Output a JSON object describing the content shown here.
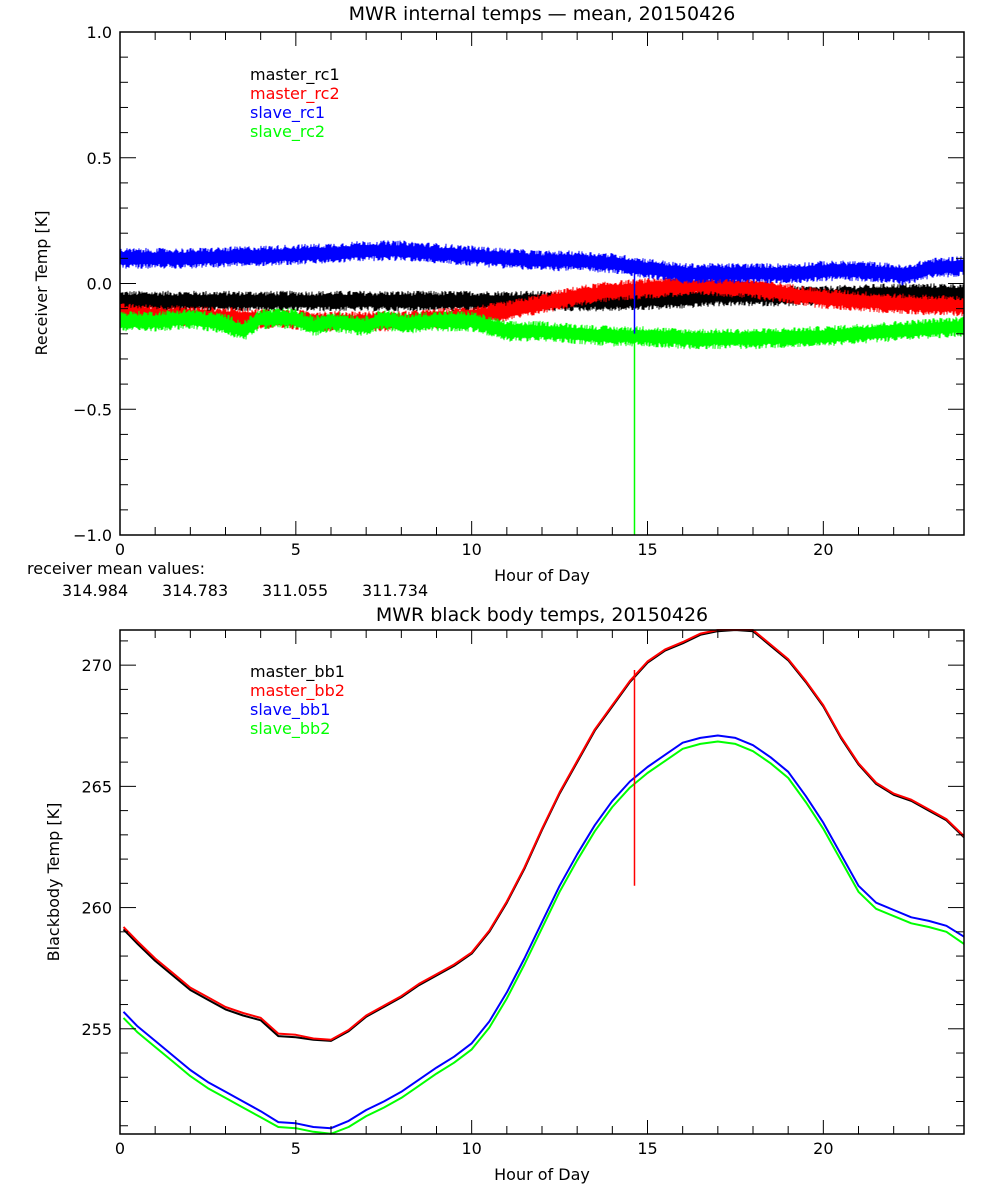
{
  "chart_data": [
    {
      "type": "line",
      "title": "MWR internal temps — mean, 20150426",
      "xlabel": "Hour of Day",
      "ylabel": "Receiver Temp [K]",
      "xlim": [
        0,
        24
      ],
      "ylim": [
        -1.0,
        1.0
      ],
      "xticks": [
        0,
        5,
        10,
        15,
        20
      ],
      "xtick_labels": [
        "0",
        "5",
        "10",
        "15",
        "20"
      ],
      "yticks": [
        -1.0,
        -0.5,
        0.0,
        0.5,
        1.0
      ],
      "ytick_labels": [
        "−1.0",
        "−0.5",
        "0.0",
        "0.5",
        "1.0"
      ],
      "grid": false,
      "legend_position": "top-left",
      "noisy": true,
      "series": [
        {
          "name": "master_rc1",
          "color": "#000000",
          "x": [
            0,
            2,
            4,
            6,
            8,
            10,
            12,
            14,
            16,
            17,
            18,
            19,
            20,
            22,
            24
          ],
          "y": [
            -0.07,
            -0.07,
            -0.07,
            -0.07,
            -0.07,
            -0.07,
            -0.07,
            -0.07,
            -0.06,
            -0.05,
            -0.05,
            -0.05,
            -0.05,
            -0.04,
            -0.04
          ]
        },
        {
          "name": "master_rc2",
          "color": "#ff0000",
          "x": [
            0,
            2,
            4,
            6,
            8,
            10,
            11,
            12,
            13,
            14,
            15,
            16,
            17,
            18,
            19,
            20,
            22,
            24
          ],
          "y": [
            -0.12,
            -0.13,
            -0.14,
            -0.15,
            -0.15,
            -0.13,
            -0.11,
            -0.08,
            -0.05,
            -0.03,
            -0.02,
            -0.01,
            -0.01,
            -0.02,
            -0.04,
            -0.06,
            -0.08,
            -0.09
          ]
        },
        {
          "name": "slave_rc1",
          "color": "#0000ff",
          "x": [
            0,
            2,
            4,
            6,
            7,
            8,
            9,
            10,
            11,
            12,
            13,
            14,
            15,
            16,
            17,
            18,
            19,
            20,
            21,
            22,
            22.3,
            23,
            24
          ],
          "y": [
            0.1,
            0.1,
            0.11,
            0.12,
            0.13,
            0.13,
            0.12,
            0.11,
            0.1,
            0.09,
            0.09,
            0.08,
            0.06,
            0.04,
            0.04,
            0.04,
            0.04,
            0.05,
            0.05,
            0.04,
            0.03,
            0.06,
            0.07
          ]
        },
        {
          "name": "slave_rc2",
          "color": "#00ff00",
          "x": [
            0,
            1,
            2,
            3,
            3.5,
            4,
            5,
            5.5,
            6,
            7,
            7.5,
            8,
            9,
            10,
            11,
            12,
            13,
            14,
            15,
            16,
            18,
            20,
            22,
            24
          ],
          "y": [
            -0.15,
            -0.15,
            -0.14,
            -0.16,
            -0.19,
            -0.14,
            -0.14,
            -0.17,
            -0.15,
            -0.17,
            -0.14,
            -0.16,
            -0.15,
            -0.15,
            -0.19,
            -0.19,
            -0.2,
            -0.21,
            -0.21,
            -0.22,
            -0.22,
            -0.21,
            -0.19,
            -0.17
          ]
        }
      ],
      "spikes": [
        {
          "series": "slave_rc1",
          "x": 14.63,
          "y_from": 0.07,
          "y_to": -0.2,
          "color": "#0000ff"
        },
        {
          "series": "slave_rc2",
          "x": 14.63,
          "y_from": -0.2,
          "y_to": -1.0,
          "color": "#00ff00"
        }
      ],
      "annotation": {
        "label": "receiver mean values:",
        "values": [
          {
            "text": "314.984",
            "color": "#000000"
          },
          {
            "text": "314.783",
            "color": "#ff0000"
          },
          {
            "text": "311.055",
            "color": "#0000ff"
          },
          {
            "text": "311.734",
            "color": "#00ff00"
          }
        ]
      }
    },
    {
      "type": "line",
      "title": "MWR black body temps, 20150426",
      "xlabel": "Hour of Day",
      "ylabel": "Blackbody Temp [K]",
      "xlim": [
        0,
        24
      ],
      "ylim": [
        250.66,
        271.45
      ],
      "xticks": [
        0,
        5,
        10,
        15,
        20
      ],
      "xtick_labels": [
        "0",
        "5",
        "10",
        "15",
        "20"
      ],
      "yticks": [
        255,
        260,
        265,
        270
      ],
      "ytick_labels": [
        "255",
        "260",
        "265",
        "270"
      ],
      "grid": false,
      "legend_position": "top-left",
      "series": [
        {
          "name": "master_bb1",
          "color": "#000000",
          "x": [
            0.1,
            0.5,
            1,
            1.5,
            2,
            2.5,
            3,
            3.5,
            4,
            4.5,
            5,
            5.5,
            6,
            6.5,
            7,
            7.5,
            8,
            8.5,
            9,
            9.5,
            10,
            10.5,
            11,
            11.5,
            12,
            12.5,
            13,
            13.5,
            14,
            14.5,
            15,
            15.5,
            16,
            16.5,
            17,
            17.5,
            18,
            18.5,
            19,
            19.5,
            20,
            20.5,
            21,
            21.5,
            22,
            22.5,
            23,
            23.5,
            24
          ],
          "y": [
            259.1,
            258.5,
            257.8,
            257.2,
            256.6,
            256.2,
            255.8,
            255.55,
            255.35,
            254.7,
            254.65,
            254.55,
            254.5,
            254.9,
            255.5,
            255.9,
            256.3,
            256.8,
            257.2,
            257.6,
            258.1,
            259.0,
            260.2,
            261.6,
            263.2,
            264.7,
            266.0,
            267.3,
            268.3,
            269.3,
            270.1,
            270.6,
            270.9,
            271.25,
            271.4,
            271.45,
            271.4,
            270.8,
            270.2,
            269.3,
            268.3,
            267.0,
            265.9,
            265.1,
            264.65,
            264.4,
            264.0,
            263.6,
            262.9
          ]
        },
        {
          "name": "master_bb2",
          "color": "#ff0000",
          "x": [
            0.1,
            0.5,
            1,
            1.5,
            2,
            2.5,
            3,
            3.5,
            4,
            4.5,
            5,
            5.5,
            6,
            6.5,
            7,
            7.5,
            8,
            8.5,
            9,
            9.5,
            10,
            10.5,
            11,
            11.5,
            12,
            12.5,
            13,
            13.5,
            14,
            14.5,
            15,
            15.5,
            16,
            16.5,
            17,
            17.5,
            18,
            18.5,
            19,
            19.5,
            20,
            20.5,
            21,
            21.5,
            22,
            22.5,
            23,
            23.5,
            24
          ],
          "y": [
            259.2,
            258.6,
            257.9,
            257.3,
            256.7,
            256.3,
            255.9,
            255.65,
            255.45,
            254.8,
            254.75,
            254.6,
            254.55,
            254.95,
            255.55,
            255.95,
            256.35,
            256.85,
            257.25,
            257.65,
            258.15,
            259.05,
            260.25,
            261.65,
            263.25,
            264.75,
            266.05,
            267.35,
            268.35,
            269.35,
            270.15,
            270.65,
            270.95,
            271.3,
            271.45,
            271.45,
            271.45,
            270.85,
            270.25,
            269.35,
            268.35,
            267.05,
            265.95,
            265.15,
            264.7,
            264.45,
            264.05,
            263.65,
            262.95
          ]
        },
        {
          "name": "slave_bb1",
          "color": "#0000ff",
          "x": [
            0.1,
            0.5,
            1,
            1.5,
            2,
            2.5,
            3,
            3.5,
            4,
            4.5,
            5,
            5.5,
            6,
            6.5,
            7,
            7.5,
            8,
            8.5,
            9,
            9.5,
            10,
            10.5,
            11,
            11.5,
            12,
            12.5,
            13,
            13.5,
            14,
            14.5,
            15,
            15.5,
            16,
            16.5,
            17,
            17.5,
            18,
            18.5,
            19,
            19.5,
            20,
            20.5,
            21,
            21.5,
            22,
            22.5,
            23,
            23.5,
            24
          ],
          "y": [
            255.7,
            255.1,
            254.5,
            253.9,
            253.3,
            252.8,
            252.4,
            252.0,
            251.6,
            251.15,
            251.1,
            250.95,
            250.9,
            251.2,
            251.65,
            252.0,
            252.4,
            252.9,
            253.4,
            253.85,
            254.4,
            255.3,
            256.5,
            257.9,
            259.4,
            260.9,
            262.2,
            263.4,
            264.4,
            265.2,
            265.8,
            266.3,
            266.8,
            267.0,
            267.1,
            267.0,
            266.7,
            266.2,
            265.6,
            264.6,
            263.5,
            262.2,
            260.9,
            260.2,
            259.9,
            259.6,
            259.45,
            259.25,
            258.8
          ]
        },
        {
          "name": "slave_bb2",
          "color": "#00ff00",
          "x": [
            0.1,
            0.5,
            1,
            1.5,
            2,
            2.5,
            3,
            3.5,
            4,
            4.5,
            5,
            5.5,
            6,
            6.5,
            7,
            7.5,
            8,
            8.5,
            9,
            9.5,
            10,
            10.5,
            11,
            11.5,
            12,
            12.5,
            13,
            13.5,
            14,
            14.5,
            15,
            15.5,
            16,
            16.5,
            17,
            17.5,
            18,
            18.5,
            19,
            19.5,
            20,
            20.5,
            21,
            21.5,
            22,
            22.5,
            23,
            23.5,
            24
          ],
          "y": [
            255.45,
            254.85,
            254.25,
            253.65,
            253.05,
            252.55,
            252.15,
            251.75,
            251.35,
            250.95,
            250.9,
            250.75,
            250.67,
            250.95,
            251.4,
            251.75,
            252.15,
            252.65,
            253.15,
            253.6,
            254.15,
            255.05,
            256.25,
            257.65,
            259.15,
            260.65,
            261.95,
            263.15,
            264.15,
            264.95,
            265.55,
            266.05,
            266.55,
            266.75,
            266.85,
            266.75,
            266.45,
            265.95,
            265.35,
            264.35,
            263.25,
            261.95,
            260.65,
            259.95,
            259.65,
            259.35,
            259.2,
            259.0,
            258.5
          ]
        }
      ],
      "spikes": [
        {
          "series": "master_bb2",
          "x": 14.63,
          "y_from": 269.8,
          "y_to": 260.9,
          "color": "#ff0000"
        }
      ]
    }
  ]
}
